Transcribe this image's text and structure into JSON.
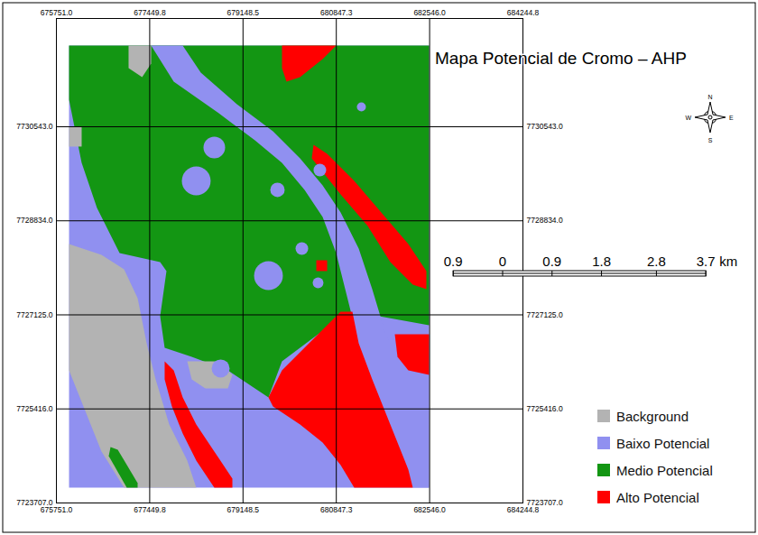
{
  "chart_data": {
    "type": "map",
    "title": "Mapa Potencial de Cromo – AHP",
    "xlim": [
      675751.0,
      684244.8
    ],
    "ylim": [
      7723707.0,
      7732510
    ],
    "xticks": [
      {
        "value": 675751.0,
        "label": "675751.0"
      },
      677449.8,
      679148.5,
      680847.3,
      {
        "value": 682546.0,
        "label": "682546.0"
      },
      684244.8
    ],
    "yticks": [
      {
        "value": 7723707.0,
        "label": "7723707.0"
      },
      {
        "value": 7725416.0,
        "label": "7725416.0"
      },
      {
        "value": 7727125.0,
        "label": "7727125.0"
      },
      {
        "value": 7728834.0,
        "label": "7728834.0"
      },
      {
        "value": 7730543.0,
        "label": "7730543.0"
      }
    ],
    "grid": true,
    "legend": "bottom-right",
    "classes": [
      {
        "name": "Background",
        "color": "#b3b3b3"
      },
      {
        "name": "Baixo Potencial",
        "color": "#9090f0"
      },
      {
        "name": "Medio Potencial",
        "color": "#139613"
      },
      {
        "name": "Alto Potencial",
        "color": "#ff0000"
      }
    ],
    "regions": [
      {
        "class": "Baixo Potencial",
        "polygon": [
          [
            675981,
            7732018
          ],
          [
            682536,
            7732018
          ],
          [
            682536,
            7723987
          ],
          [
            675981,
            7723987
          ]
        ]
      },
      {
        "class": "Medio Potencial",
        "polygon": [
          [
            675981,
            7732018
          ],
          [
            682536,
            7732018
          ],
          [
            682536,
            7726937
          ],
          [
            681173,
            7727183
          ],
          [
            680515,
            7726773
          ],
          [
            679858,
            7726282
          ],
          [
            679612,
            7725626
          ],
          [
            679365,
            7725790
          ],
          [
            678873,
            7726118
          ],
          [
            678215,
            7726364
          ],
          [
            677722,
            7726528
          ],
          [
            677640,
            7727101
          ],
          [
            677755,
            7727921
          ],
          [
            677640,
            7728085
          ],
          [
            676901,
            7728249
          ],
          [
            676490,
            7729068
          ],
          [
            676211,
            7729888
          ],
          [
            675981,
            7731035
          ]
        ]
      },
      {
        "class": "Background",
        "polygon": [
          [
            677065,
            7732018
          ],
          [
            677476,
            7732018
          ],
          [
            677476,
            7731690
          ],
          [
            677312,
            7731445
          ],
          [
            677065,
            7731609
          ]
        ]
      },
      {
        "class": "Background",
        "polygon": [
          [
            675981,
            7730543
          ],
          [
            676211,
            7730543
          ],
          [
            676211,
            7730183
          ],
          [
            675981,
            7730183
          ]
        ]
      },
      {
        "class": "Background",
        "polygon": [
          [
            675981,
            7728412
          ],
          [
            676572,
            7728216
          ],
          [
            676983,
            7727954
          ],
          [
            677230,
            7727429
          ],
          [
            677394,
            7726610
          ],
          [
            677558,
            7725954
          ],
          [
            677805,
            7725134
          ],
          [
            678133,
            7724479
          ],
          [
            678297,
            7723987
          ],
          [
            676983,
            7723987
          ],
          [
            676572,
            7724643
          ],
          [
            675981,
            7726118
          ]
        ]
      },
      {
        "class": "Background",
        "polygon": [
          [
            678133,
            7726282
          ],
          [
            678708,
            7726282
          ],
          [
            678955,
            7726036
          ],
          [
            678873,
            7725790
          ],
          [
            678462,
            7725790
          ],
          [
            678215,
            7725954
          ]
        ]
      },
      {
        "class": "Medio Potencial",
        "polygon": [
          [
            676737,
            7724725
          ],
          [
            676868,
            7724676
          ],
          [
            677230,
            7724069
          ],
          [
            677230,
            7723987
          ],
          [
            677032,
            7723987
          ],
          [
            676704,
            7724561
          ]
        ]
      },
      {
        "class": "Baixo Potencial",
        "polygon": [
          [
            677476,
            7732018
          ],
          [
            677887,
            7731363
          ],
          [
            678708,
            7730789
          ],
          [
            679365,
            7730297
          ],
          [
            679858,
            7729888
          ],
          [
            680269,
            7729396
          ],
          [
            680598,
            7728904
          ],
          [
            680844,
            7728249
          ],
          [
            681009,
            7727593
          ],
          [
            681255,
            7726610
          ],
          [
            681501,
            7725954
          ],
          [
            681830,
            7725134
          ],
          [
            682158,
            7724315
          ],
          [
            682240,
            7723987
          ],
          [
            682536,
            7723987
          ],
          [
            682536,
            7726036
          ],
          [
            681994,
            7726282
          ],
          [
            681748,
            7726773
          ],
          [
            681501,
            7727593
          ],
          [
            681255,
            7728331
          ],
          [
            680926,
            7728986
          ],
          [
            680598,
            7729478
          ],
          [
            680187,
            7729970
          ],
          [
            679694,
            7730461
          ],
          [
            679037,
            7730953
          ],
          [
            678380,
            7731527
          ],
          [
            678051,
            7732018
          ]
        ]
      },
      {
        "class": "Alto Potencial",
        "polygon": [
          [
            679858,
            7732018
          ],
          [
            680844,
            7732018
          ],
          [
            680598,
            7731772
          ],
          [
            680187,
            7731445
          ],
          [
            679940,
            7731363
          ],
          [
            679858,
            7731609
          ]
        ]
      },
      {
        "class": "Alto Potencial",
        "polygon": [
          [
            680433,
            7730215
          ],
          [
            680680,
            7730051
          ],
          [
            681173,
            7729560
          ],
          [
            681665,
            7728986
          ],
          [
            682158,
            7728412
          ],
          [
            682487,
            7727921
          ],
          [
            682487,
            7727593
          ],
          [
            682240,
            7727675
          ],
          [
            681830,
            7728085
          ],
          [
            681419,
            7728740
          ],
          [
            680926,
            7729314
          ],
          [
            680598,
            7729724
          ],
          [
            680400,
            7729970
          ]
        ]
      },
      {
        "class": "Alto Potencial",
        "polygon": [
          [
            680483,
            7728117
          ],
          [
            680680,
            7728117
          ],
          [
            680680,
            7727921
          ],
          [
            680483,
            7727921
          ]
        ]
      },
      {
        "class": "Alto Potencial",
        "polygon": [
          [
            679612,
            7725626
          ],
          [
            679858,
            7726118
          ],
          [
            680351,
            7726610
          ],
          [
            680926,
            7727183
          ],
          [
            681140,
            7727183
          ],
          [
            681255,
            7726610
          ],
          [
            681501,
            7725954
          ],
          [
            681830,
            7725134
          ],
          [
            682158,
            7724315
          ],
          [
            682240,
            7723987
          ],
          [
            681173,
            7723987
          ],
          [
            680926,
            7724397
          ],
          [
            680598,
            7724807
          ],
          [
            680187,
            7725134
          ],
          [
            679694,
            7725462
          ]
        ]
      },
      {
        "class": "Alto Potencial",
        "polygon": [
          [
            681912,
            7726773
          ],
          [
            682536,
            7726773
          ],
          [
            682536,
            7726036
          ],
          [
            682158,
            7726118
          ],
          [
            681961,
            7726364
          ]
        ]
      },
      {
        "class": "Alto Potencial",
        "polygon": [
          [
            677722,
            7726282
          ],
          [
            677887,
            7726118
          ],
          [
            678051,
            7725626
          ],
          [
            678297,
            7725134
          ],
          [
            678626,
            7724643
          ],
          [
            678955,
            7724151
          ],
          [
            678955,
            7723987
          ],
          [
            678626,
            7723987
          ],
          [
            678297,
            7724479
          ],
          [
            678051,
            7724971
          ],
          [
            677854,
            7725462
          ],
          [
            677722,
            7725954
          ]
        ]
      }
    ],
    "circles": [
      {
        "class": "Baixo Potencial",
        "center": [
          678626,
          7730166
        ],
        "radius": 197
      },
      {
        "class": "Baixo Potencial",
        "center": [
          678297,
          7729560
        ],
        "radius": 262
      },
      {
        "class": "Baixo Potencial",
        "center": [
          679776,
          7729396
        ],
        "radius": 131
      },
      {
        "class": "Baixo Potencial",
        "center": [
          679612,
          7727839
        ],
        "radius": 262
      },
      {
        "class": "Baixo Potencial",
        "center": [
          680220,
          7728331
        ],
        "radius": 115
      },
      {
        "class": "Baixo Potencial",
        "center": [
          680548,
          7729756
        ],
        "radius": 115
      },
      {
        "class": "Baixo Potencial",
        "center": [
          680515,
          7727708
        ],
        "radius": 98
      },
      {
        "class": "Baixo Potencial",
        "center": [
          678741,
          7726151
        ],
        "radius": 164
      },
      {
        "class": "Baixo Potencial",
        "center": [
          681304,
          7730904
        ],
        "radius": 82
      }
    ],
    "scale_bar": {
      "unit": "km",
      "ticks": [
        {
          "value": -0.9,
          "label": "0.9"
        },
        0,
        0.9,
        1.8,
        2.8,
        3.7
      ]
    },
    "compass": [
      "N",
      "E",
      "S",
      "W"
    ]
  }
}
